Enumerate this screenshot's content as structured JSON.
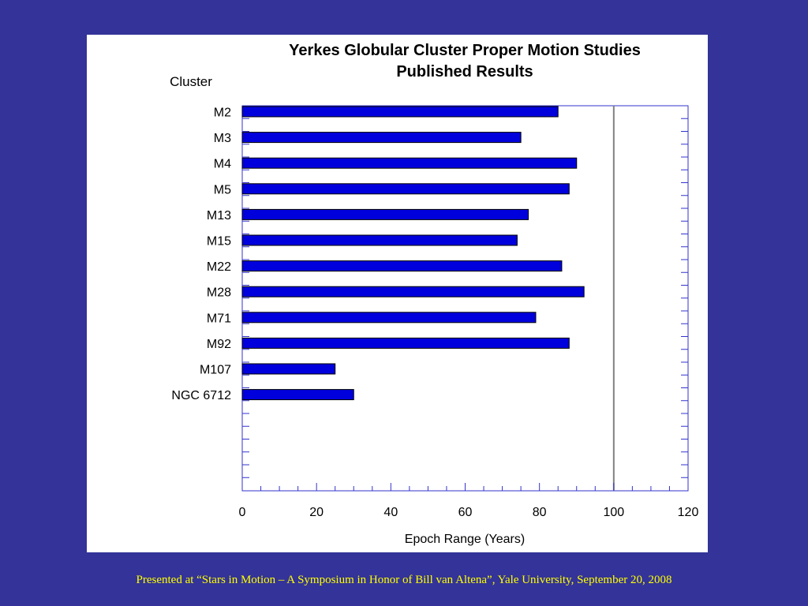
{
  "chart_data": {
    "type": "bar",
    "orientation": "horizontal",
    "title_line1": "Yerkes Globular Cluster Proper Motion Studies",
    "title_line2": "Published Results",
    "ylabel": "Cluster",
    "xlabel": "Epoch Range (Years)",
    "categories": [
      "M2",
      "M3",
      "M4",
      "M5",
      "M13",
      "M15",
      "M22",
      "M28",
      "M71",
      "M92",
      "M107",
      "NGC 6712"
    ],
    "values": [
      85,
      75,
      90,
      88,
      77,
      74,
      86,
      92,
      79,
      88,
      25,
      30
    ],
    "xlim": [
      0,
      120
    ],
    "x_ticks": [
      "0",
      "20",
      "40",
      "60",
      "80",
      "100",
      "120"
    ],
    "reference_line_x": 100,
    "grid": false,
    "bar_color": "#0000dd",
    "axis_color": "#3333cc",
    "reference_line_color": "#808080"
  },
  "footer": "Presented at “Stars in Motion – A Symposium in Honor of Bill van Altena”, Yale University, September 20, 2008",
  "colors": {
    "background": "#333399",
    "panel": "#ffffff",
    "footer_text": "#ffff00"
  }
}
